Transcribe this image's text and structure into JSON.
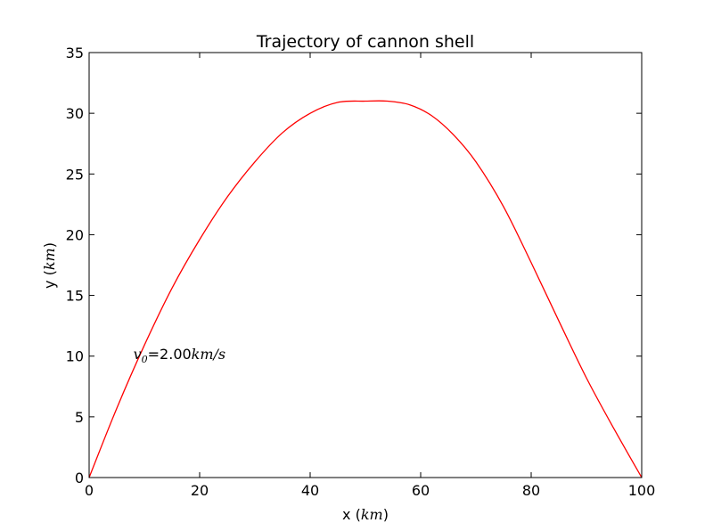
{
  "chart_data": {
    "type": "line",
    "title": "Trajectory of cannon shell",
    "xlabel": {
      "text": "x (",
      "math": "km",
      "close": ")"
    },
    "ylabel": {
      "text": "y (",
      "math": "km",
      "close": ")"
    },
    "xlim": [
      0,
      100
    ],
    "ylim": [
      0,
      35
    ],
    "xticks": [
      0,
      20,
      40,
      60,
      80,
      100
    ],
    "yticks": [
      0,
      5,
      10,
      15,
      20,
      25,
      30,
      35
    ],
    "grid": false,
    "annotation": {
      "symbol": "v",
      "subscript": "0",
      "eq": "=2.00",
      "units": "km/s",
      "x": 8,
      "y": 10.2
    },
    "series": [
      {
        "color": "#ff0000",
        "x": [
          0,
          5,
          10,
          15,
          20,
          25,
          30,
          35,
          40,
          45,
          50,
          54,
          58,
          62,
          66,
          70,
          75,
          80,
          85,
          90,
          95,
          100
        ],
        "y": [
          0,
          5.7,
          10.9,
          15.6,
          19.6,
          23.1,
          26.0,
          28.4,
          30.0,
          30.9,
          31.0,
          31.0,
          30.7,
          29.8,
          28.2,
          26.0,
          22.3,
          17.7,
          12.9,
          8.2,
          4.0,
          0
        ]
      }
    ]
  }
}
